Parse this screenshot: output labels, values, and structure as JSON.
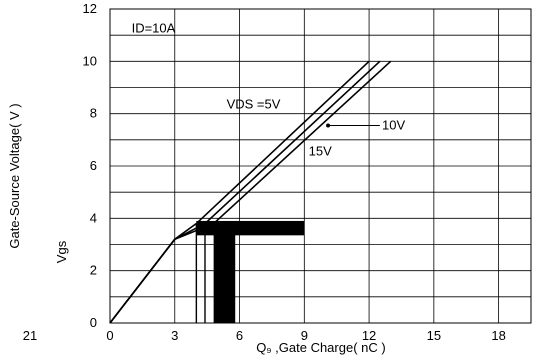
{
  "chart_data": {
    "type": "line",
    "title": "",
    "xlabel": "Q₉ ,Gate Charge( nC )",
    "ylabel": "Gate-Source Voltage( V )",
    "ylabel_short": "Vgs",
    "xlim": [
      0,
      19.5
    ],
    "ylim": [
      0,
      12
    ],
    "xticks": [
      0,
      3,
      6,
      9,
      12,
      15,
      18
    ],
    "yticks": [
      0,
      2,
      4,
      6,
      8,
      10,
      12
    ],
    "x_extra_label": "21",
    "grid": true,
    "series": [
      {
        "name": "5V",
        "x": [
          0,
          3,
          4.0,
          12.0
        ],
        "y": [
          0,
          3.2,
          3.8,
          10
        ]
      },
      {
        "name": "10V",
        "x": [
          0,
          3,
          4.4,
          12.5
        ],
        "y": [
          0,
          3.2,
          3.8,
          10
        ]
      },
      {
        "name": "15V",
        "x": [
          0,
          3,
          4.8,
          13.0
        ],
        "y": [
          0,
          3.2,
          3.8,
          10
        ]
      }
    ],
    "annotations": [
      {
        "text": "ID=10A",
        "x": 1.0,
        "y": 11.1
      },
      {
        "text": "VDS =5V",
        "x": 5.4,
        "y": 8.2
      },
      {
        "text": "10V",
        "x": 12.6,
        "y": 7.4
      },
      {
        "text": "15V",
        "x": 9.2,
        "y": 6.4
      }
    ],
    "colors": {
      "line": "#000000",
      "grid": "#000000",
      "background": "#ffffff"
    }
  }
}
